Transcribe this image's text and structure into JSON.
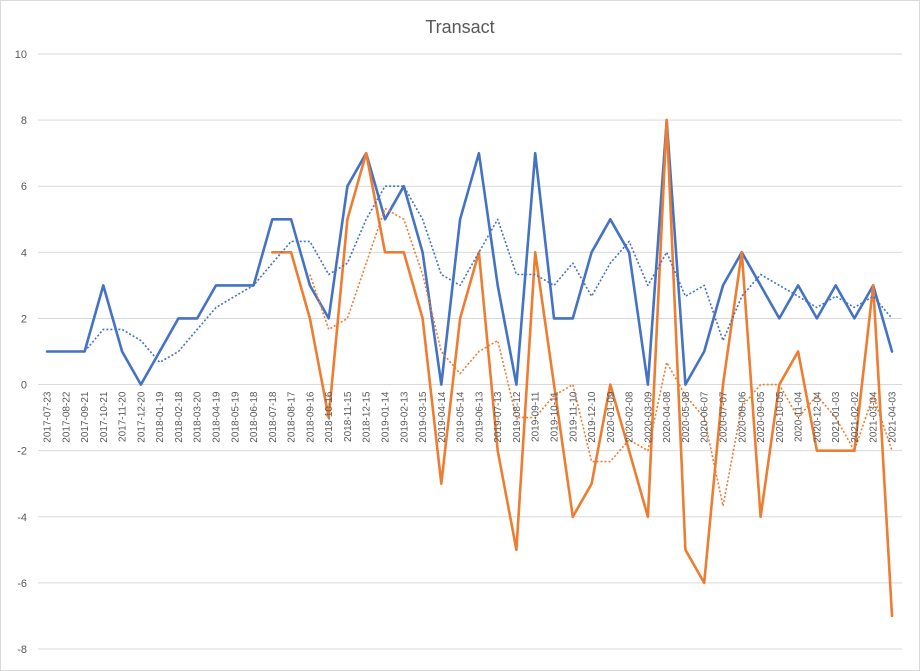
{
  "chart_data": {
    "type": "line",
    "title": "Transact",
    "xlabel": "",
    "ylabel": "",
    "ylim": [
      -8,
      10
    ],
    "yticks": [
      -8,
      -6,
      -4,
      -2,
      0,
      2,
      4,
      6,
      8,
      10
    ],
    "grid": "horizontal",
    "legend": "none",
    "categories": [
      "2017-07-23",
      "2017-08-22",
      "2017-09-21",
      "2017-10-21",
      "2017-11-20",
      "2017-12-20",
      "2018-01-19",
      "2018-02-18",
      "2018-03-20",
      "2018-04-19",
      "2018-05-19",
      "2018-06-18",
      "2018-07-18",
      "2018-08-17",
      "2018-09-16",
      "2018-10-16",
      "2018-11-15",
      "2018-12-15",
      "2019-01-14",
      "2019-02-13",
      "2019-03-15",
      "2019-04-14",
      "2019-05-14",
      "2019-06-13",
      "2019-07-13",
      "2019-08-12",
      "2019-09-11",
      "2019-10-11",
      "2019-11-10",
      "2019-12-10",
      "2020-01-09",
      "2020-02-08",
      "2020-03-09",
      "2020-04-08",
      "2020-05-08",
      "2020-06-07",
      "2020-07-07",
      "2020-08-06",
      "2020-09-05",
      "2020-10-05",
      "2020-11-04",
      "2020-12-04",
      "2021-01-03",
      "2021-02-02",
      "2021-03-04",
      "2021-04-03"
    ],
    "series": [
      {
        "color": "#4472c4",
        "style": "solid",
        "values": [
          1,
          1,
          1,
          3,
          1,
          0,
          1,
          2,
          2,
          3,
          3,
          3,
          5,
          5,
          3,
          2,
          6,
          7,
          5,
          6,
          4,
          0,
          5,
          7,
          3,
          0,
          7,
          2,
          2,
          4,
          5,
          4,
          0,
          8,
          0,
          1,
          3,
          4,
          3,
          2,
          3,
          2,
          3,
          2,
          3,
          1
        ]
      },
      {
        "color": "#ed7d31",
        "style": "solid",
        "values": [
          null,
          null,
          null,
          null,
          null,
          null,
          null,
          null,
          null,
          null,
          null,
          null,
          4,
          4,
          2,
          -1,
          5,
          7,
          4,
          4,
          2,
          -3,
          2,
          4,
          -2,
          -5,
          4,
          0,
          -4,
          -3,
          0,
          -2,
          -4,
          8,
          -5,
          -6,
          0,
          4,
          -4,
          0,
          1,
          -2,
          -2,
          -2,
          3,
          -7
        ]
      },
      {
        "color": "#4472c4",
        "style": "dotted",
        "values": [
          null,
          null,
          1,
          1.67,
          1.67,
          1.33,
          0.67,
          1,
          1.67,
          2.33,
          2.67,
          3,
          3.67,
          4.33,
          4.33,
          3.33,
          3.67,
          5,
          6,
          6,
          5,
          3.33,
          3,
          4,
          5,
          3.33,
          3.33,
          3,
          3.67,
          2.67,
          3.67,
          4.33,
          3,
          4,
          2.67,
          3,
          1.33,
          2.67,
          3.33,
          3,
          2.67,
          2.33,
          2.67,
          2.33,
          2.67,
          2
        ]
      },
      {
        "color": "#ed7d31",
        "style": "dotted",
        "values": [
          null,
          null,
          null,
          null,
          null,
          null,
          null,
          null,
          null,
          null,
          null,
          null,
          null,
          null,
          3.33,
          1.67,
          2,
          3.67,
          5.33,
          5,
          3.33,
          1,
          0.33,
          1,
          1.33,
          -1,
          -1,
          -0.33,
          0,
          -2.33,
          -2.33,
          -1.67,
          -2,
          0.67,
          -0.33,
          -1,
          -3.67,
          -0.67,
          0,
          0,
          -1,
          -0.33,
          -1,
          -2,
          -0.33,
          -2
        ]
      }
    ]
  }
}
